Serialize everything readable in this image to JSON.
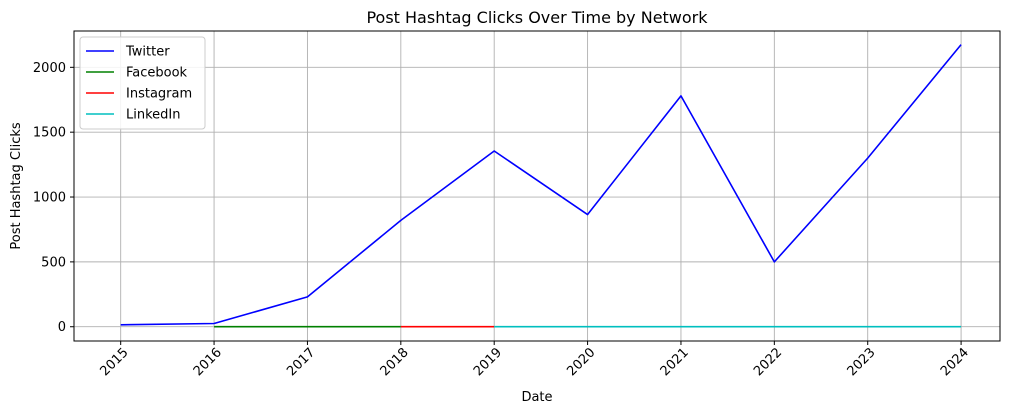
{
  "chart_data": {
    "type": "line",
    "title": "Post Hashtag Clicks Over Time by Network",
    "xlabel": "Date",
    "ylabel": "Post Hashtag Clicks",
    "x_ticks": [
      "2015",
      "2016",
      "2017",
      "2018",
      "2019",
      "2020",
      "2021",
      "2022",
      "2023",
      "2024"
    ],
    "y_ticks": [
      0,
      500,
      1000,
      1500,
      2000
    ],
    "xlim": [
      "2014-07",
      "2024-06"
    ],
    "ylim": [
      -110,
      2280
    ],
    "grid": true,
    "legend_position": "top-left",
    "series": [
      {
        "name": "Twitter",
        "color": "#0000ff",
        "x": [
          "2015",
          "2016",
          "2017",
          "2018",
          "2019",
          "2020",
          "2021",
          "2022",
          "2023",
          "2024"
        ],
        "values": [
          15,
          25,
          230,
          820,
          1355,
          865,
          1780,
          500,
          1300,
          2175
        ]
      },
      {
        "name": "Facebook",
        "color": "#008000",
        "x": [
          "2016",
          "2017",
          "2018"
        ],
        "values": [
          0,
          0,
          0
        ]
      },
      {
        "name": "Instagram",
        "color": "#ff0000",
        "x": [
          "2018",
          "2019"
        ],
        "values": [
          0,
          0
        ]
      },
      {
        "name": "LinkedIn",
        "color": "#00bfbf",
        "x": [
          "2019",
          "2020",
          "2021",
          "2022",
          "2023",
          "2024"
        ],
        "values": [
          0,
          0,
          0,
          0,
          0,
          0
        ]
      }
    ]
  }
}
